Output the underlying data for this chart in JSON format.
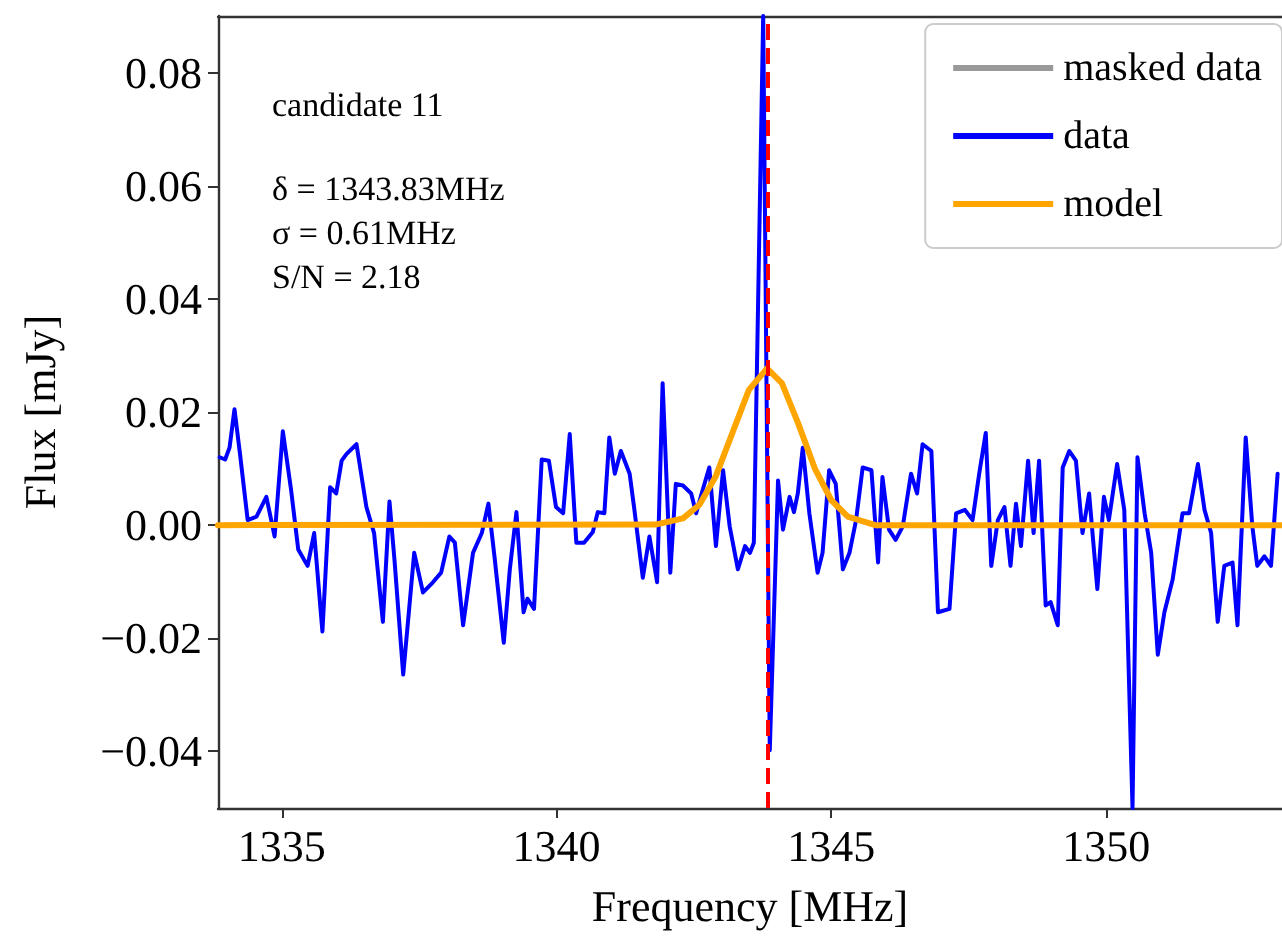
{
  "chart_data": {
    "type": "line",
    "xlabel": "Frequency [MHz]",
    "ylabel": "Flux [mJy]",
    "annotations": [
      "candidate 11",
      "δ = 1343.83MHz",
      "σ = 0.61MHz",
      "S/N = 2.18"
    ],
    "xlim": [
      1333.84,
      1353.2
    ],
    "xticks": [
      1335,
      1340,
      1345,
      1350
    ],
    "ylim": [
      -0.05,
      0.09
    ],
    "yticks": [
      {
        "value": -0.04,
        "label": "−0.04"
      },
      {
        "value": -0.02,
        "label": "−0.02"
      },
      {
        "value": 0,
        "label": "0.00"
      },
      0.02,
      0.04,
      0.06,
      0.08
    ],
    "grid": false,
    "legend": "top right",
    "marker": "none",
    "line_style": "solid",
    "ref_lines": [
      {
        "axis": "x",
        "value": 1343.83,
        "color": "#ff0000",
        "line_style": "dashed"
      }
    ],
    "series": [
      {
        "name": "masked data",
        "color": "#999999"
      },
      {
        "name": "data",
        "color": "#0000ff",
        "x": [
          1333.87,
          1333.97,
          1334.05,
          1334.14,
          1334.24,
          1334.38,
          1334.54,
          1334.72,
          1334.87,
          1335.02,
          1335.17,
          1335.3,
          1335.47,
          1335.59,
          1335.74,
          1335.88,
          1335.99,
          1336.09,
          1336.18,
          1336.36,
          1336.54,
          1336.68,
          1336.84,
          1336.96,
          1337.05,
          1337.21,
          1337.41,
          1337.57,
          1337.75,
          1337.9,
          1338.05,
          1338.15,
          1338.3,
          1338.48,
          1338.64,
          1338.76,
          1338.87,
          1339.04,
          1339.15,
          1339.27,
          1339.4,
          1339.47,
          1339.59,
          1339.73,
          1339.86,
          1339.99,
          1340.12,
          1340.24,
          1340.36,
          1340.5,
          1340.66,
          1340.75,
          1340.87,
          1340.96,
          1341.06,
          1341.17,
          1341.33,
          1341.41,
          1341.57,
          1341.69,
          1341.83,
          1341.93,
          1342.07,
          1342.17,
          1342.3,
          1342.45,
          1342.54,
          1342.64,
          1342.78,
          1342.9,
          1343.03,
          1343.15,
          1343.3,
          1343.43,
          1343.52,
          1343.59,
          1343.76,
          1343.88,
          1344.03,
          1344.12,
          1344.24,
          1344.32,
          1344.39,
          1344.48,
          1344.6,
          1344.75,
          1344.84,
          1344.96,
          1345.08,
          1345.21,
          1345.33,
          1345.45,
          1345.57,
          1345.73,
          1345.85,
          1345.93,
          1346.05,
          1346.17,
          1346.3,
          1346.45,
          1346.56,
          1346.66,
          1346.82,
          1346.94,
          1347.15,
          1347.27,
          1347.43,
          1347.57,
          1347.69,
          1347.81,
          1347.91,
          1348.03,
          1348.15,
          1348.26,
          1348.36,
          1348.45,
          1348.58,
          1348.68,
          1348.78,
          1348.9,
          1348.99,
          1349.12,
          1349.21,
          1349.33,
          1349.45,
          1349.57,
          1349.69,
          1349.84,
          1349.96,
          1350.05,
          1350.2,
          1350.33,
          1350.48,
          1350.57,
          1350.7,
          1350.82,
          1350.94,
          1351.06,
          1351.21,
          1351.39,
          1351.51,
          1351.67,
          1351.79,
          1351.91,
          1352.03,
          1352.15,
          1352.3,
          1352.39,
          1352.54,
          1352.66,
          1352.75,
          1352.88,
          1353.0,
          1353.12
        ],
        "values": [
          0.012,
          0.0116,
          0.0137,
          0.0205,
          0.0126,
          0.0009,
          0.0015,
          0.005,
          -0.002,
          0.0166,
          0.0062,
          -0.0043,
          -0.0072,
          -0.0014,
          -0.0188,
          0.0067,
          0.0056,
          0.0114,
          0.0126,
          0.0143,
          0.0032,
          -0.0014,
          -0.0171,
          0.0042,
          -0.006,
          -0.0264,
          -0.0049,
          -0.0119,
          -0.0101,
          -0.0084,
          -0.002,
          -0.0031,
          -0.0177,
          -0.0049,
          -0.0014,
          0.0038,
          -0.0055,
          -0.0208,
          -0.0078,
          0.0023,
          -0.0154,
          -0.013,
          -0.0148,
          0.0116,
          0.0114,
          0.0032,
          0.0021,
          0.0161,
          -0.0031,
          -0.0031,
          -0.0012,
          0.0023,
          0.0021,
          0.0155,
          0.0091,
          0.0131,
          0.0091,
          0.0032,
          -0.0093,
          -0.002,
          -0.0101,
          0.0251,
          -0.0084,
          0.0073,
          0.007,
          0.0056,
          0.0021,
          0.0056,
          0.0102,
          -0.0037,
          0.0097,
          -0.0002,
          -0.0078,
          -0.0037,
          -0.0049,
          -0.0031,
          0.09,
          -0.0398,
          0.0079,
          -0.0008,
          0.005,
          0.0023,
          0.0056,
          0.0137,
          0.0021,
          -0.0084,
          -0.0049,
          0.0097,
          0.0073,
          -0.0078,
          -0.0049,
          0.0009,
          0.0102,
          0.0097,
          -0.0066,
          0.0085,
          -0.0008,
          -0.0026,
          -0.0002,
          0.0091,
          0.0056,
          0.0143,
          0.0131,
          -0.0154,
          -0.0148,
          0.0021,
          0.0027,
          0.0009,
          0.0091,
          0.0163,
          -0.0072,
          0.0009,
          0.0032,
          -0.0072,
          0.0038,
          -0.0037,
          0.0114,
          -0.0014,
          0.0114,
          -0.0142,
          -0.0136,
          -0.0177,
          0.0102,
          0.0131,
          0.0114,
          -0.0014,
          0.0056,
          -0.0113,
          0.005,
          0.0009,
          0.0108,
          0.0027,
          -0.05,
          0.012,
          0.0021,
          -0.0049,
          -0.0229,
          -0.0154,
          -0.0096,
          0.0021,
          0.0021,
          0.0108,
          0.0027,
          -0.0014,
          -0.0171,
          -0.0072,
          -0.0066,
          -0.0177,
          0.0155,
          -0.0002,
          -0.0072,
          -0.0055,
          -0.0072,
          0.0091
        ]
      },
      {
        "name": "model",
        "color": "#ffa500",
        "x": [
          1333.84,
          1341.8,
          1342.3,
          1342.6,
          1342.9,
          1343.2,
          1343.5,
          1343.83,
          1344.1,
          1344.4,
          1344.7,
          1345.0,
          1345.3,
          1345.8,
          1353.2
        ],
        "values": [
          0,
          0.0001,
          0.0012,
          0.0036,
          0.0087,
          0.0163,
          0.0239,
          0.0277,
          0.0251,
          0.0179,
          0.01,
          0.0044,
          0.0015,
          0,
          0
        ]
      }
    ]
  }
}
